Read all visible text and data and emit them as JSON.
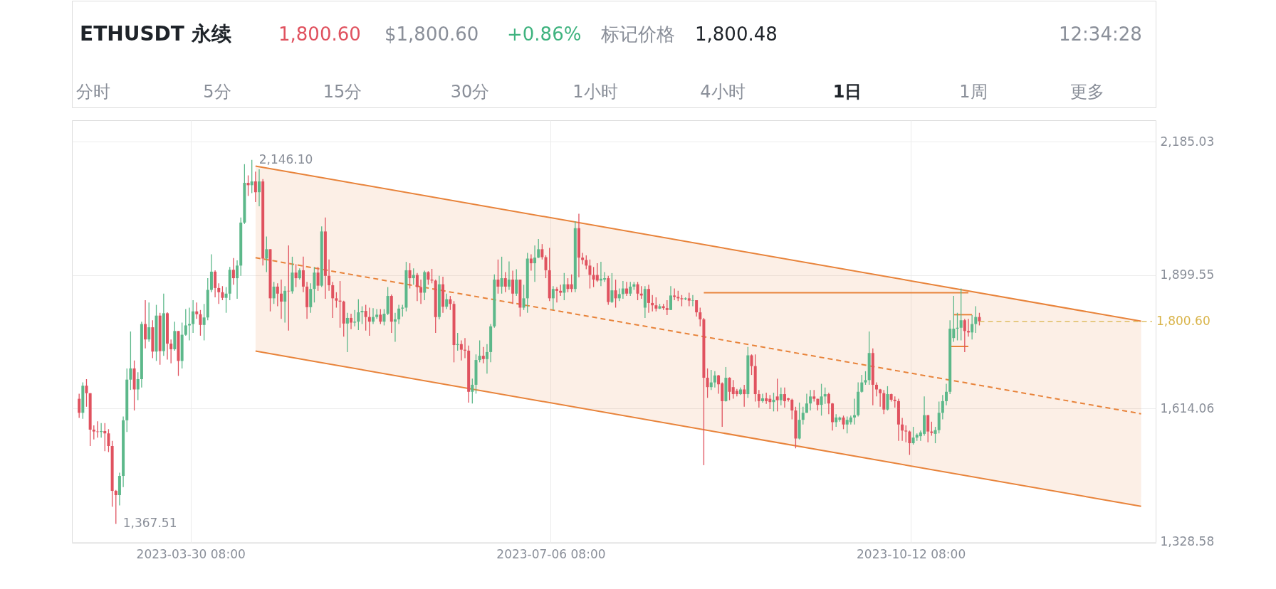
{
  "chart_data": {
    "type": "candlestick",
    "title": "ETHUSDT 永续",
    "annotations": [
      "1,800.60",
      "$1,800.60",
      "+0.86%",
      "标记价格",
      "1,800.48",
      "12:34:28",
      "分时",
      "5分",
      "15分",
      "30分",
      "1小时",
      "4小时",
      "1日",
      "1周",
      "更多",
      {
        "text": "2,146.10",
        "x": "2023-04-16",
        "y": 2146.1
      },
      {
        "text": "1,367.51",
        "x": "2023-03-10",
        "y": 1367.51
      }
    ],
    "x": [
      "2023-02-28",
      "2023-03-01",
      "2023-03-02",
      "2023-03-03",
      "2023-03-04",
      "2023-03-05",
      "2023-03-06",
      "2023-03-07",
      "2023-03-08",
      "2023-03-09",
      "2023-03-10",
      "2023-03-11",
      "2023-03-12",
      "2023-03-13",
      "2023-03-14",
      "2023-03-15",
      "2023-03-16",
      "2023-03-17",
      "2023-03-18",
      "2023-03-19",
      "2023-03-20",
      "2023-03-21",
      "2023-03-22",
      "2023-03-23",
      "2023-03-24",
      "2023-03-25",
      "2023-03-26",
      "2023-03-27",
      "2023-03-28",
      "2023-03-29",
      "2023-03-30",
      "2023-03-31",
      "2023-04-01",
      "2023-04-02",
      "2023-04-03",
      "2023-04-04",
      "2023-04-05",
      "2023-04-06",
      "2023-04-07",
      "2023-04-08",
      "2023-04-09",
      "2023-04-10",
      "2023-04-11",
      "2023-04-12",
      "2023-04-13",
      "2023-04-14",
      "2023-04-15",
      "2023-04-16",
      "2023-04-17",
      "2023-04-18",
      "2023-04-19",
      "2023-04-20",
      "2023-04-21",
      "2023-04-22",
      "2023-04-23",
      "2023-04-24",
      "2023-04-25",
      "2023-04-26",
      "2023-04-27",
      "2023-04-28",
      "2023-04-29",
      "2023-04-30",
      "2023-05-01",
      "2023-05-02",
      "2023-05-03",
      "2023-05-04",
      "2023-05-05",
      "2023-05-06",
      "2023-05-07",
      "2023-05-08",
      "2023-05-09",
      "2023-05-10",
      "2023-05-11",
      "2023-05-12",
      "2023-05-13",
      "2023-05-14",
      "2023-05-15",
      "2023-05-16",
      "2023-05-17",
      "2023-05-18",
      "2023-05-19",
      "2023-05-20",
      "2023-05-21",
      "2023-05-22",
      "2023-05-23",
      "2023-05-24",
      "2023-05-25",
      "2023-05-26",
      "2023-05-27",
      "2023-05-28",
      "2023-05-29",
      "2023-05-30",
      "2023-05-31",
      "2023-06-01",
      "2023-06-02",
      "2023-06-03",
      "2023-06-04",
      "2023-06-05",
      "2023-06-06",
      "2023-06-07",
      "2023-06-08",
      "2023-06-09",
      "2023-06-10",
      "2023-06-11",
      "2023-06-12",
      "2023-06-13",
      "2023-06-14",
      "2023-06-15",
      "2023-06-16",
      "2023-06-17",
      "2023-06-18",
      "2023-06-19",
      "2023-06-20",
      "2023-06-21",
      "2023-06-22",
      "2023-06-23",
      "2023-06-24",
      "2023-06-25",
      "2023-06-26",
      "2023-06-27",
      "2023-06-28",
      "2023-06-29",
      "2023-06-30",
      "2023-07-01",
      "2023-07-02",
      "2023-07-03",
      "2023-07-04",
      "2023-07-05",
      "2023-07-06",
      "2023-07-07",
      "2023-07-08",
      "2023-07-09",
      "2023-07-10",
      "2023-07-11",
      "2023-07-12",
      "2023-07-13",
      "2023-07-14",
      "2023-07-15",
      "2023-07-16",
      "2023-07-17",
      "2023-07-18",
      "2023-07-19",
      "2023-07-20",
      "2023-07-21",
      "2023-07-22",
      "2023-07-23",
      "2023-07-24",
      "2023-07-25",
      "2023-07-26",
      "2023-07-27",
      "2023-07-28",
      "2023-07-29",
      "2023-07-30",
      "2023-07-31",
      "2023-08-01",
      "2023-08-02",
      "2023-08-03",
      "2023-08-04",
      "2023-08-05",
      "2023-08-06",
      "2023-08-07",
      "2023-08-08",
      "2023-08-09",
      "2023-08-10",
      "2023-08-11",
      "2023-08-12",
      "2023-08-13",
      "2023-08-14",
      "2023-08-15",
      "2023-08-16",
      "2023-08-17",
      "2023-08-18",
      "2023-08-19",
      "2023-08-20",
      "2023-08-21",
      "2023-08-22",
      "2023-08-23",
      "2023-08-24",
      "2023-08-25",
      "2023-08-26",
      "2023-08-27",
      "2023-08-28",
      "2023-08-29",
      "2023-08-30",
      "2023-08-31",
      "2023-09-01",
      "2023-09-02",
      "2023-09-03",
      "2023-09-04",
      "2023-09-05",
      "2023-09-06",
      "2023-09-07",
      "2023-09-08",
      "2023-09-09",
      "2023-09-10",
      "2023-09-11",
      "2023-09-12",
      "2023-09-13",
      "2023-09-14",
      "2023-09-15",
      "2023-09-16",
      "2023-09-17",
      "2023-09-18",
      "2023-09-19",
      "2023-09-20",
      "2023-09-21",
      "2023-09-22",
      "2023-09-23",
      "2023-09-24",
      "2023-09-25",
      "2023-09-26",
      "2023-09-27",
      "2023-09-28",
      "2023-09-29",
      "2023-09-30",
      "2023-10-01",
      "2023-10-02",
      "2023-10-03",
      "2023-10-04",
      "2023-10-05",
      "2023-10-06",
      "2023-10-07",
      "2023-10-08",
      "2023-10-09",
      "2023-10-10",
      "2023-10-11",
      "2023-10-12",
      "2023-10-13",
      "2023-10-14",
      "2023-10-15",
      "2023-10-16",
      "2023-10-17",
      "2023-10-18",
      "2023-10-19",
      "2023-10-20",
      "2023-10-21",
      "2023-10-22",
      "2023-10-23",
      "2023-10-24",
      "2023-10-25",
      "2023-10-26",
      "2023-10-27",
      "2023-10-28",
      "2023-10-29",
      "2023-10-30",
      "2023-10-31"
    ],
    "ohlc": [
      [
        1635,
        1646,
        1594,
        1605
      ],
      [
        1605,
        1670,
        1592,
        1663
      ],
      [
        1663,
        1677,
        1618,
        1647
      ],
      [
        1647,
        1647,
        1534,
        1569
      ],
      [
        1569,
        1578,
        1548,
        1565
      ],
      [
        1565,
        1587,
        1552,
        1564
      ],
      [
        1564,
        1583,
        1552,
        1566
      ],
      [
        1566,
        1583,
        1523,
        1561
      ],
      [
        1561,
        1570,
        1521,
        1534
      ],
      [
        1534,
        1545,
        1404,
        1438
      ],
      [
        1438,
        1440,
        1367.51,
        1429
      ],
      [
        1429,
        1477,
        1407,
        1470
      ],
      [
        1470,
        1597,
        1446,
        1589
      ],
      [
        1589,
        1700,
        1564,
        1676
      ],
      [
        1676,
        1779,
        1654,
        1700
      ],
      [
        1700,
        1717,
        1610,
        1655
      ],
      [
        1655,
        1692,
        1632,
        1677
      ],
      [
        1677,
        1800,
        1659,
        1795
      ],
      [
        1795,
        1846,
        1743,
        1762
      ],
      [
        1762,
        1841,
        1757,
        1788
      ],
      [
        1788,
        1803,
        1722,
        1736
      ],
      [
        1736,
        1836,
        1716,
        1813
      ],
      [
        1813,
        1819,
        1708,
        1737
      ],
      [
        1737,
        1860,
        1727,
        1818
      ],
      [
        1818,
        1820,
        1719,
        1753
      ],
      [
        1753,
        1762,
        1711,
        1741
      ],
      [
        1741,
        1800,
        1738,
        1780
      ],
      [
        1780,
        1780,
        1684,
        1716
      ],
      [
        1716,
        1798,
        1700,
        1772
      ],
      [
        1772,
        1827,
        1770,
        1792
      ],
      [
        1792,
        1830,
        1760,
        1795
      ],
      [
        1795,
        1846,
        1776,
        1822
      ],
      [
        1822,
        1841,
        1806,
        1816
      ],
      [
        1816,
        1825,
        1770,
        1793
      ],
      [
        1793,
        1838,
        1760,
        1809
      ],
      [
        1809,
        1893,
        1803,
        1868
      ],
      [
        1868,
        1944,
        1863,
        1907
      ],
      [
        1907,
        1910,
        1852,
        1872
      ],
      [
        1872,
        1882,
        1838,
        1863
      ],
      [
        1863,
        1876,
        1846,
        1851
      ],
      [
        1851,
        1874,
        1819,
        1860
      ],
      [
        1860,
        1917,
        1846,
        1911
      ],
      [
        1911,
        1936,
        1879,
        1893
      ],
      [
        1893,
        1931,
        1849,
        1920
      ],
      [
        1920,
        2023,
        1898,
        2012
      ],
      [
        2012,
        2137,
        2009,
        2097
      ],
      [
        2097,
        2113,
        2069,
        2092
      ],
      [
        2092,
        2146.1,
        2075,
        2100
      ],
      [
        2100,
        2121,
        2056,
        2077
      ],
      [
        2077,
        2126,
        2047,
        2100
      ],
      [
        2100,
        2105,
        1920,
        1935
      ],
      [
        1935,
        1982,
        1906,
        1955
      ],
      [
        1955,
        1955,
        1822,
        1850
      ],
      [
        1850,
        1885,
        1838,
        1875
      ],
      [
        1875,
        1882,
        1833,
        1860
      ],
      [
        1860,
        1890,
        1806,
        1843
      ],
      [
        1843,
        1876,
        1798,
        1866
      ],
      [
        1866,
        1963,
        1781,
        1865
      ],
      [
        1865,
        1939,
        1860,
        1905
      ],
      [
        1905,
        1923,
        1874,
        1893
      ],
      [
        1893,
        1914,
        1890,
        1910
      ],
      [
        1910,
        1939,
        1863,
        1875
      ],
      [
        1875,
        1885,
        1806,
        1831
      ],
      [
        1831,
        1882,
        1819,
        1870
      ],
      [
        1870,
        1917,
        1841,
        1905
      ],
      [
        1905,
        1917,
        1866,
        1877
      ],
      [
        1877,
        2004,
        1874,
        1993
      ],
      [
        1993,
        2023,
        1849,
        1898
      ],
      [
        1898,
        1933,
        1866,
        1878
      ],
      [
        1878,
        1885,
        1808,
        1850
      ],
      [
        1850,
        1863,
        1830,
        1845
      ],
      [
        1845,
        1887,
        1787,
        1843
      ],
      [
        1843,
        1845,
        1768,
        1796
      ],
      [
        1796,
        1819,
        1735,
        1808
      ],
      [
        1808,
        1817,
        1784,
        1798
      ],
      [
        1798,
        1825,
        1790,
        1800
      ],
      [
        1800,
        1848,
        1782,
        1820
      ],
      [
        1820,
        1833,
        1795,
        1823
      ],
      [
        1823,
        1836,
        1781,
        1810
      ],
      [
        1810,
        1830,
        1770,
        1800
      ],
      [
        1800,
        1829,
        1795,
        1810
      ],
      [
        1810,
        1827,
        1806,
        1815
      ],
      [
        1815,
        1827,
        1795,
        1800
      ],
      [
        1800,
        1827,
        1792,
        1817
      ],
      [
        1817,
        1874,
        1814,
        1855
      ],
      [
        1855,
        1858,
        1776,
        1800
      ],
      [
        1800,
        1819,
        1757,
        1805
      ],
      [
        1805,
        1836,
        1795,
        1828
      ],
      [
        1828,
        1836,
        1811,
        1830
      ],
      [
        1830,
        1928,
        1822,
        1910
      ],
      [
        1910,
        1925,
        1871,
        1893
      ],
      [
        1893,
        1914,
        1879,
        1900
      ],
      [
        1900,
        1904,
        1844,
        1874
      ],
      [
        1874,
        1890,
        1838,
        1862
      ],
      [
        1862,
        1909,
        1846,
        1906
      ],
      [
        1906,
        1908,
        1879,
        1890
      ],
      [
        1890,
        1913,
        1882,
        1888
      ],
      [
        1888,
        1890,
        1776,
        1810
      ],
      [
        1810,
        1898,
        1805,
        1880
      ],
      [
        1880,
        1896,
        1819,
        1832
      ],
      [
        1832,
        1860,
        1827,
        1848
      ],
      [
        1848,
        1855,
        1825,
        1838
      ],
      [
        1838,
        1844,
        1713,
        1750
      ],
      [
        1750,
        1776,
        1738,
        1752
      ],
      [
        1752,
        1760,
        1717,
        1740
      ],
      [
        1740,
        1765,
        1722,
        1738
      ],
      [
        1738,
        1749,
        1627,
        1650
      ],
      [
        1650,
        1678,
        1625,
        1665
      ],
      [
        1665,
        1730,
        1646,
        1718
      ],
      [
        1718,
        1760,
        1713,
        1727
      ],
      [
        1727,
        1746,
        1711,
        1720
      ],
      [
        1720,
        1752,
        1689,
        1735
      ],
      [
        1735,
        1795,
        1713,
        1790
      ],
      [
        1790,
        1901,
        1787,
        1890
      ],
      [
        1890,
        1933,
        1860,
        1875
      ],
      [
        1875,
        1939,
        1860,
        1893
      ],
      [
        1893,
        1906,
        1863,
        1875
      ],
      [
        1875,
        1929,
        1868,
        1890
      ],
      [
        1890,
        1909,
        1838,
        1860
      ],
      [
        1860,
        1912,
        1855,
        1890
      ],
      [
        1890,
        1890,
        1811,
        1830
      ],
      [
        1830,
        1879,
        1825,
        1850
      ],
      [
        1850,
        1947,
        1819,
        1935
      ],
      [
        1935,
        1944,
        1909,
        1925
      ],
      [
        1925,
        1963,
        1885,
        1937
      ],
      [
        1937,
        1977,
        1936,
        1955
      ],
      [
        1955,
        1966,
        1933,
        1938
      ],
      [
        1938,
        1942,
        1893,
        1910
      ],
      [
        1910,
        1958,
        1844,
        1850
      ],
      [
        1850,
        1876,
        1825,
        1870
      ],
      [
        1870,
        1874,
        1841,
        1866
      ],
      [
        1866,
        1879,
        1855,
        1862
      ],
      [
        1862,
        1904,
        1846,
        1880
      ],
      [
        1880,
        1893,
        1863,
        1870
      ],
      [
        1880,
        1901,
        1863,
        1870
      ],
      [
        1870,
        2015,
        1863,
        2000
      ],
      [
        2000,
        2031,
        1895,
        1937
      ],
      [
        1937,
        1947,
        1923,
        1932
      ],
      [
        1932,
        1942,
        1912,
        1920
      ],
      [
        1920,
        1933,
        1871,
        1900
      ],
      [
        1900,
        1917,
        1874,
        1890
      ],
      [
        1900,
        1925,
        1885,
        1888
      ],
      [
        1888,
        1928,
        1876,
        1892
      ],
      [
        1890,
        1906,
        1885,
        1893
      ],
      [
        1893,
        1898,
        1836,
        1842
      ],
      [
        1842,
        1904,
        1840,
        1867
      ],
      [
        1867,
        1890,
        1830,
        1850
      ],
      [
        1850,
        1871,
        1844,
        1859
      ],
      [
        1859,
        1887,
        1849,
        1871
      ],
      [
        1871,
        1885,
        1855,
        1860
      ],
      [
        1860,
        1885,
        1855,
        1875
      ],
      [
        1875,
        1885,
        1868,
        1880
      ],
      [
        1880,
        1885,
        1846,
        1860
      ],
      [
        1860,
        1876,
        1849,
        1856
      ],
      [
        1830,
        1876,
        1808,
        1870
      ],
      [
        1870,
        1879,
        1819,
        1840
      ],
      [
        1840,
        1857,
        1822,
        1835
      ],
      [
        1835,
        1852,
        1822,
        1828
      ],
      [
        1828,
        1838,
        1827,
        1833
      ],
      [
        1833,
        1838,
        1825,
        1829
      ],
      [
        1829,
        1846,
        1814,
        1825
      ],
      [
        1825,
        1876,
        1825,
        1856
      ],
      [
        1856,
        1871,
        1846,
        1853
      ],
      [
        1853,
        1866,
        1844,
        1850
      ],
      [
        1850,
        1857,
        1833,
        1848
      ],
      [
        1848,
        1852,
        1846,
        1850
      ],
      [
        1850,
        1862,
        1833,
        1845
      ],
      [
        1845,
        1857,
        1833,
        1846
      ],
      [
        1846,
        1846,
        1811,
        1820
      ],
      [
        1820,
        1830,
        1790,
        1805
      ],
      [
        1805,
        1808,
        1493,
        1680
      ],
      [
        1680,
        1700,
        1637,
        1660
      ],
      [
        1660,
        1697,
        1654,
        1670
      ],
      [
        1670,
        1694,
        1659,
        1685
      ],
      [
        1685,
        1686,
        1646,
        1666
      ],
      [
        1668,
        1670,
        1575,
        1630
      ],
      [
        1630,
        1703,
        1629,
        1680
      ],
      [
        1680,
        1681,
        1632,
        1650
      ],
      [
        1660,
        1675,
        1635,
        1645
      ],
      [
        1652,
        1656,
        1640,
        1645
      ],
      [
        1645,
        1659,
        1643,
        1655
      ],
      [
        1655,
        1665,
        1618,
        1645
      ],
      [
        1645,
        1746,
        1637,
        1728
      ],
      [
        1728,
        1730,
        1686,
        1705
      ],
      [
        1705,
        1730,
        1629,
        1645
      ],
      [
        1645,
        1654,
        1616,
        1630
      ],
      [
        1630,
        1646,
        1627,
        1636
      ],
      [
        1636,
        1648,
        1624,
        1630
      ],
      [
        1635,
        1643,
        1613,
        1628
      ],
      [
        1628,
        1648,
        1608,
        1633
      ],
      [
        1640,
        1678,
        1608,
        1632
      ],
      [
        1632,
        1659,
        1621,
        1645
      ],
      [
        1645,
        1659,
        1616,
        1630
      ],
      [
        1636,
        1637,
        1629,
        1633
      ],
      [
        1633,
        1635,
        1591,
        1610
      ],
      [
        1610,
        1618,
        1529,
        1550
      ],
      [
        1550,
        1627,
        1548,
        1590
      ],
      [
        1590,
        1618,
        1580,
        1605
      ],
      [
        1605,
        1646,
        1605,
        1625
      ],
      [
        1625,
        1654,
        1610,
        1640
      ],
      [
        1640,
        1654,
        1629,
        1635
      ],
      [
        1635,
        1635,
        1610,
        1622
      ],
      [
        1622,
        1667,
        1599,
        1640
      ],
      [
        1640,
        1659,
        1624,
        1645
      ],
      [
        1645,
        1648,
        1602,
        1625
      ],
      [
        1625,
        1626,
        1567,
        1585
      ],
      [
        1585,
        1602,
        1575,
        1595
      ],
      [
        1590,
        1597,
        1586,
        1595
      ],
      [
        1595,
        1599,
        1570,
        1580
      ],
      [
        1580,
        1597,
        1561,
        1590
      ],
      [
        1585,
        1599,
        1580,
        1595
      ],
      [
        1595,
        1635,
        1580,
        1600
      ],
      [
        1600,
        1670,
        1597,
        1650
      ],
      [
        1650,
        1686,
        1648,
        1670
      ],
      [
        1670,
        1694,
        1665,
        1675
      ],
      [
        1675,
        1779,
        1665,
        1733
      ],
      [
        1733,
        1743,
        1621,
        1665
      ],
      [
        1665,
        1670,
        1640,
        1655
      ],
      [
        1655,
        1656,
        1618,
        1647
      ],
      [
        1647,
        1654,
        1602,
        1612
      ],
      [
        1612,
        1662,
        1610,
        1645
      ],
      [
        1645,
        1646,
        1629,
        1633
      ],
      [
        1633,
        1640,
        1616,
        1630
      ],
      [
        1630,
        1635,
        1545,
        1580
      ],
      [
        1580,
        1594,
        1545,
        1567
      ],
      [
        1567,
        1578,
        1542,
        1565
      ],
      [
        1565,
        1567,
        1515,
        1540
      ],
      [
        1540,
        1575,
        1537,
        1552
      ],
      [
        1552,
        1561,
        1545,
        1558
      ],
      [
        1555,
        1567,
        1545,
        1563
      ],
      [
        1560,
        1640,
        1556,
        1600
      ],
      [
        1600,
        1600,
        1542,
        1565
      ],
      [
        1565,
        1586,
        1556,
        1562
      ],
      [
        1560,
        1575,
        1540,
        1568
      ],
      [
        1568,
        1629,
        1561,
        1605
      ],
      [
        1605,
        1643,
        1591,
        1630
      ],
      [
        1630,
        1667,
        1621,
        1650
      ],
      [
        1650,
        1803,
        1645,
        1785
      ],
      [
        1765,
        1855,
        1757,
        1785
      ],
      [
        1785,
        1819,
        1760,
        1787
      ],
      [
        1787,
        1871,
        1760,
        1803
      ],
      [
        1803,
        1806,
        1735,
        1780
      ],
      [
        1780,
        1806,
        1768,
        1777
      ],
      [
        1777,
        1814,
        1762,
        1795
      ],
      [
        1795,
        1833,
        1776,
        1810
      ],
      [
        1810,
        1819,
        1792,
        1800.6
      ]
    ],
    "colors": [
      "#e0525f",
      "#5cb88a",
      "#e0525f",
      "#e0525f",
      "#e0525f",
      "#e0525f",
      "#5cb88a",
      "#e0525f",
      "#e0525f",
      "#e0525f",
      "#e0525f",
      "#5cb88a",
      "#5cb88a",
      "#5cb88a",
      "#5cb88a",
      "#e0525f",
      "#5cb88a",
      "#5cb88a",
      "#e0525f",
      "#5cb88a",
      "#e0525f",
      "#5cb88a",
      "#e0525f",
      "#5cb88a",
      "#e0525f",
      "#e0525f",
      "#5cb88a",
      "#e0525f",
      "#5cb88a",
      "#5cb88a",
      "#5cb88a",
      "#5cb88a",
      "#e0525f",
      "#e0525f",
      "#5cb88a",
      "#5cb88a",
      "#5cb88a",
      "#e0525f",
      "#e0525f",
      "#e0525f",
      "#5cb88a",
      "#5cb88a",
      "#e0525f",
      "#5cb88a",
      "#5cb88a",
      "#5cb88a",
      "#e0525f",
      "#5cb88a",
      "#e0525f",
      "#5cb88a",
      "#e0525f",
      "#5cb88a",
      "#e0525f",
      "#5cb88a",
      "#e0525f",
      "#e0525f",
      "#5cb88a",
      "#e0525f",
      "#5cb88a",
      "#e0525f",
      "#5cb88a",
      "#e0525f",
      "#e0525f",
      "#5cb88a",
      "#5cb88a",
      "#e0525f",
      "#5cb88a",
      "#e0525f",
      "#e0525f",
      "#e0525f",
      "#e0525f",
      "#e0525f",
      "#e0525f",
      "#5cb88a",
      "#e0525f",
      "#5cb88a",
      "#5cb88a",
      "#5cb88a",
      "#e0525f",
      "#e0525f",
      "#5cb88a",
      "#5cb88a",
      "#e0525f",
      "#5cb88a",
      "#5cb88a",
      "#e0525f",
      "#5cb88a",
      "#5cb88a",
      "#5cb88a",
      "#5cb88a",
      "#e0525f",
      "#5cb88a",
      "#e0525f",
      "#e0525f",
      "#5cb88a",
      "#e0525f",
      "#e0525f",
      "#e0525f",
      "#5cb88a",
      "#e0525f",
      "#5cb88a",
      "#e0525f",
      "#e0525f",
      "#5cb88a",
      "#e0525f",
      "#e0525f",
      "#e0525f",
      "#5cb88a",
      "#5cb88a",
      "#5cb88a",
      "#e0525f",
      "#5cb88a",
      "#5cb88a",
      "#5cb88a",
      "#e0525f",
      "#5cb88a",
      "#e0525f",
      "#5cb88a",
      "#e0525f",
      "#5cb88a",
      "#e0525f",
      "#5cb88a",
      "#5cb88a",
      "#e0525f",
      "#5cb88a",
      "#5cb88a",
      "#e0525f",
      "#e0525f",
      "#e0525f",
      "#5cb88a",
      "#e0525f",
      "#e0525f",
      "#5cb88a",
      "#e0525f",
      "#e0525f",
      "#5cb88a",
      "#e0525f",
      "#e0525f",
      "#e0525f",
      "#e0525f",
      "#e0525f",
      "#e0525f",
      "#5cb88a",
      "#5cb88a",
      "#e0525f",
      "#5cb88a",
      "#e0525f",
      "#5cb88a",
      "#5cb88a",
      "#e0525f",
      "#5cb88a",
      "#5cb88a",
      "#e0525f",
      "#e0525f",
      "#5cb88a",
      "#e0525f",
      "#e0525f",
      "#e0525f",
      "#5cb88a",
      "#e0525f",
      "#e0525f",
      "#5cb88a",
      "#e0525f",
      "#e0525f",
      "#e0525f",
      "#5cb88a",
      "#e0525f",
      "#5cb88a",
      "#e0525f",
      "#e0525f",
      "#e0525f",
      "#e0525f",
      "#5cb88a",
      "#5cb88a",
      "#e0525f",
      "#e0525f",
      "#5cb88a",
      "#e0525f",
      "#e0525f",
      "#e0525f",
      "#5cb88a",
      "#e0525f",
      "#5cb88a",
      "#e0525f",
      "#e0525f",
      "#e0525f",
      "#5cb88a",
      "#e0525f",
      "#e0525f",
      "#5cb88a",
      "#e0525f",
      "#5cb88a",
      "#e0525f",
      "#e0525f",
      "#e0525f",
      "#e0525f",
      "#5cb88a",
      "#5cb88a",
      "#5cb88a",
      "#5cb88a",
      "#e0525f",
      "#e0525f",
      "#5cb88a",
      "#5cb88a",
      "#e0525f",
      "#e0525f",
      "#5cb88a",
      "#5cb88a",
      "#e0525f",
      "#5cb88a",
      "#5cb88a",
      "#5cb88a",
      "#5cb88a",
      "#5cb88a",
      "#5cb88a",
      "#5cb88a",
      "#e0525f",
      "#e0525f",
      "#e0525f",
      "#e0525f",
      "#5cb88a",
      "#e0525f",
      "#e0525f",
      "#e0525f",
      "#e0525f",
      "#e0525f",
      "#e0525f",
      "#5cb88a",
      "#5cb88a",
      "#5cb88a",
      "#5cb88a",
      "#e0525f",
      "#e0525f",
      "#5cb88a",
      "#5cb88a",
      "#5cb88a",
      "#5cb88a",
      "#5cb88a",
      "#5cb88a",
      "#5cb88a",
      "#5cb88a",
      "#e0525f",
      "#e0525f",
      "#5cb88a",
      "#5cb88a",
      "#e0525f"
    ],
    "series": [
      {
        "type": "line",
        "color": "#e8833a",
        "line_style": "dashed",
        "x": [
          "2023-04-17",
          "2023-12-14"
        ],
        "values": [
          1937,
          1603
        ],
        "lower": [
          1737,
          1405
        ],
        "upper": [
          2133,
          1801
        ]
      },
      {
        "type": "line",
        "color": "#e8833a",
        "line_style": "solid",
        "x": [
          "2023-04-17",
          "2023-12-14"
        ],
        "values": [
          2133,
          1801
        ]
      },
      {
        "type": "line",
        "color": "#e8833a",
        "line_style": "solid",
        "x": [
          "2023-04-17",
          "2023-12-14"
        ],
        "values": [
          1737,
          1405
        ]
      },
      {
        "type": "line",
        "color": "#e8833a",
        "line_style": "solid",
        "x": [
          "2023-08-17",
          "2023-10-28"
        ],
        "values": [
          1862,
          1862
        ]
      },
      {
        "type": "line",
        "color": "#e8833a",
        "line_style": "solid",
        "x": [
          "2023-10-24",
          "2023-10-29"
        ],
        "values": [
          1815,
          1815
        ]
      },
      {
        "type": "line",
        "color": "#e8833a",
        "line_style": "solid",
        "x": [
          "2023-10-23",
          "2023-10-28"
        ],
        "values": [
          1747,
          1747
        ]
      }
    ],
    "ref_lines": [
      {
        "axis": "y",
        "value": 1800.6,
        "label": "1,800.60",
        "color": "#d9b44a",
        "line_style": "dashed"
      }
    ],
    "xlim": [
      "2023-02-27",
      "2023-12-17"
    ],
    "xticks": [
      {
        "value": "2023-03-30T08:00",
        "label": "2023-03-30 08:00"
      },
      {
        "value": "2023-07-06T08:00",
        "label": "2023-07-06 08:00"
      },
      {
        "value": "2023-10-12T08:00",
        "label": "2023-10-12 08:00"
      }
    ],
    "ylim": [
      1327,
      2231
    ],
    "yticks": [
      {
        "value": 1328.58,
        "label": "1,328.58"
      },
      {
        "value": 1614.06,
        "label": "1,614.06"
      },
      {
        "value": 1899.55,
        "label": "1,899.55"
      },
      {
        "value": 2185.03,
        "label": "2,185.03"
      }
    ],
    "grid": true
  }
}
